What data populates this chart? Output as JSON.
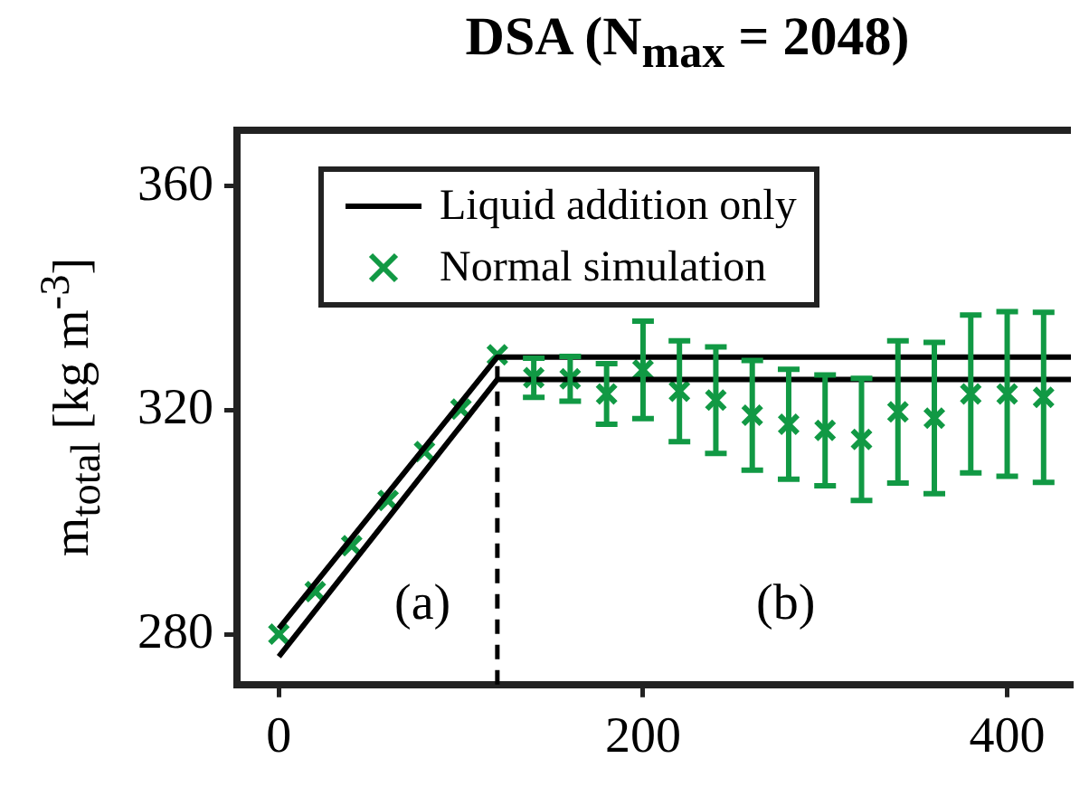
{
  "chart_data": {
    "type": "scatter",
    "title": "DSA (N$_{max}$ = 2048)",
    "ylabel": "m$_{total}$ [kg m$^{-3}$]",
    "xlim": [
      -23,
      435
    ],
    "xticks": [
      0,
      200,
      400
    ],
    "ylim": [
      271,
      370
    ],
    "yticks": [
      280,
      320,
      360
    ],
    "grid": false,
    "legend": "top left",
    "series": [
      {
        "name": "Liquid addition only",
        "type": "line",
        "color": "#000000",
        "marker": "none",
        "line_style": "solid",
        "x": [
          0,
          120,
          435
        ],
        "values": [
          281,
          329.5,
          329.5
        ]
      },
      {
        "type": "line",
        "color": "#000000",
        "marker": "none",
        "line_style": "solid",
        "x": [
          0,
          120,
          435
        ],
        "values": [
          276,
          325.5,
          325.5
        ]
      },
      {
        "name": "Normal simulation",
        "type": "scatter",
        "color": "#119944",
        "marker": "cross",
        "x": [
          0,
          20,
          40,
          60,
          80,
          100,
          120,
          140,
          160,
          180,
          200,
          220,
          240,
          260,
          280,
          300,
          320,
          340,
          360,
          380,
          400,
          420
        ],
        "values": [
          280,
          287.6,
          295.8,
          303.9,
          312.6,
          320.2,
          329.9,
          325.8,
          325.6,
          322.9,
          327.2,
          323.4,
          321.8,
          319.1,
          317.5,
          316.4,
          314.8,
          319.7,
          318.6,
          322.9,
          322.9,
          322.3
        ],
        "errors": [
          null,
          null,
          null,
          null,
          null,
          null,
          null,
          3.5,
          4,
          5.4,
          8.7,
          9,
          9.5,
          9.8,
          9.8,
          9.9,
          10.9,
          12.7,
          13.5,
          14.1,
          14.7,
          15.2
        ]
      }
    ],
    "ref_lines": [
      {
        "axis": "x",
        "value": 120,
        "color": "#000000",
        "line_style": "dashed"
      }
    ],
    "annotations": [
      "(a)",
      "(b)"
    ]
  }
}
